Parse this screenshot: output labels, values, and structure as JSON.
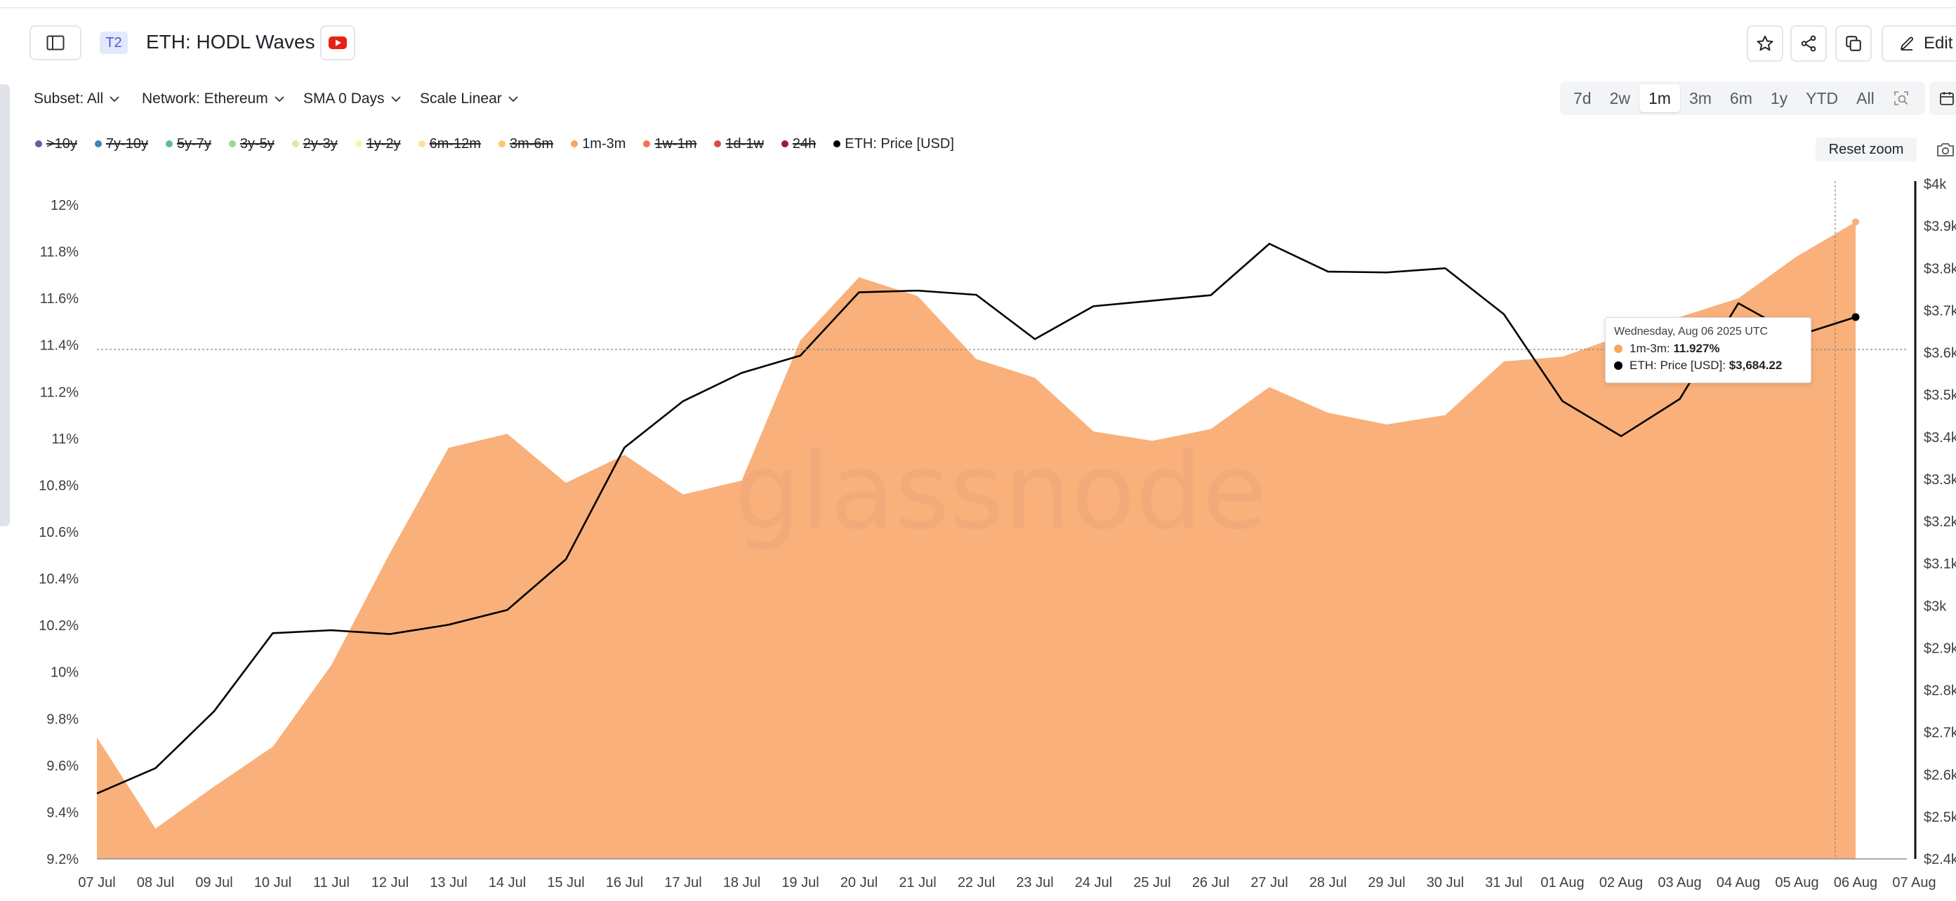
{
  "header": {
    "tier_badge": "T2",
    "title": "ETH: HODL Waves",
    "edit_label": "Edit"
  },
  "controls": {
    "subset": "Subset: All",
    "network": "Network: Ethereum",
    "sma": "SMA 0 Days",
    "scale": "Scale Linear"
  },
  "ranges": [
    {
      "label": "7d",
      "active": false
    },
    {
      "label": "2w",
      "active": false
    },
    {
      "label": "1m",
      "active": true
    },
    {
      "label": "3m",
      "active": false
    },
    {
      "label": "6m",
      "active": false
    },
    {
      "label": "1y",
      "active": false
    },
    {
      "label": "YTD",
      "active": false
    },
    {
      "label": "All",
      "active": false
    }
  ],
  "reset_zoom": "Reset zoom",
  "legend": [
    {
      "label": ">10y",
      "color": "#6a5aa8",
      "visible": false
    },
    {
      "label": "7y-10y",
      "color": "#3f84b8",
      "visible": false
    },
    {
      "label": "5y-7y",
      "color": "#5bb8a8",
      "visible": false
    },
    {
      "label": "3y-5y",
      "color": "#a3d39c",
      "visible": false
    },
    {
      "label": "2y-3y",
      "color": "#d8ec9a",
      "visible": false
    },
    {
      "label": "1y-2y",
      "color": "#fbf3a6",
      "visible": false
    },
    {
      "label": "6m-12m",
      "color": "#fde39a",
      "visible": false
    },
    {
      "label": "3m-6m",
      "color": "#fdc76b",
      "visible": false
    },
    {
      "label": "1m-3m",
      "color": "#f9a65a",
      "visible": true
    },
    {
      "label": "1w-1m",
      "color": "#f0764b",
      "visible": false
    },
    {
      "label": "1d-1w",
      "color": "#d94a4f",
      "visible": false
    },
    {
      "label": "24h",
      "color": "#a3104b",
      "visible": false
    },
    {
      "label": "ETH: Price [USD]",
      "color": "#000000",
      "visible": true
    }
  ],
  "watermark": "glassnode",
  "tooltip": {
    "date": "Wednesday, Aug 06 2025 UTC",
    "series1_name": "1m-3m",
    "series1_value": "11.927%",
    "series2_name": "ETH: Price [USD]",
    "series2_value": "$3,684.22"
  },
  "chart_data": {
    "type": "area",
    "x": [
      "07 Jul",
      "08 Jul",
      "09 Jul",
      "10 Jul",
      "11 Jul",
      "12 Jul",
      "13 Jul",
      "14 Jul",
      "15 Jul",
      "16 Jul",
      "17 Jul",
      "18 Jul",
      "19 Jul",
      "20 Jul",
      "21 Jul",
      "22 Jul",
      "23 Jul",
      "24 Jul",
      "25 Jul",
      "26 Jul",
      "27 Jul",
      "28 Jul",
      "29 Jul",
      "30 Jul",
      "31 Jul",
      "01 Aug",
      "02 Aug",
      "03 Aug",
      "04 Aug",
      "05 Aug",
      "06 Aug"
    ],
    "x_tick_labels": [
      "07 Jul",
      "08 Jul",
      "09 Jul",
      "10 Jul",
      "11 Jul",
      "12 Jul",
      "13 Jul",
      "14 Jul",
      "15 Jul",
      "16 Jul",
      "17 Jul",
      "18 Jul",
      "19 Jul",
      "20 Jul",
      "21 Jul",
      "22 Jul",
      "23 Jul",
      "24 Jul",
      "25 Jul",
      "26 Jul",
      "27 Jul",
      "28 Jul",
      "29 Jul",
      "30 Jul",
      "31 Jul",
      "01 Aug",
      "02 Aug",
      "03 Aug",
      "04 Aug",
      "05 Aug",
      "06 Aug",
      "07 Aug"
    ],
    "series": [
      {
        "name": "1m-3m",
        "axis": "left",
        "kind": "area",
        "color": "#f9b07a",
        "values": [
          9.72,
          9.33,
          9.51,
          9.68,
          10.03,
          10.51,
          10.96,
          11.02,
          10.81,
          10.93,
          10.76,
          10.82,
          11.42,
          11.69,
          11.61,
          11.34,
          11.26,
          11.03,
          10.99,
          11.04,
          11.22,
          11.11,
          11.06,
          11.1,
          11.33,
          11.35,
          11.44,
          11.52,
          11.6,
          11.78,
          11.927
        ]
      },
      {
        "name": "ETH: Price [USD]",
        "axis": "right",
        "kind": "line",
        "color": "#000000",
        "values": [
          2555,
          2615,
          2750,
          2935,
          2942,
          2933,
          2955,
          2990,
          3110,
          3375,
          3485,
          3552,
          3593,
          3743,
          3747,
          3737,
          3632,
          3710,
          3723,
          3736,
          3858,
          3792,
          3790,
          3800,
          3691,
          3485,
          3402,
          3490,
          3717,
          3640,
          3684.22
        ]
      }
    ],
    "y_left": {
      "min": 9.2,
      "max": 12.0,
      "ticks": [
        "9.2%",
        "9.4%",
        "9.6%",
        "9.8%",
        "10%",
        "10.2%",
        "10.4%",
        "10.6%",
        "10.8%",
        "11%",
        "11.2%",
        "11.4%",
        "11.6%",
        "11.8%",
        "12%"
      ]
    },
    "y_right": {
      "min": 2400,
      "max": 4000,
      "ticks": [
        "$2.4k",
        "$2.5k",
        "$2.6k",
        "$2.7k",
        "$2.8k",
        "$2.9k",
        "$3k",
        "$3.1k",
        "$3.2k",
        "$3.3k",
        "$3.4k",
        "$3.5k",
        "$3.6k",
        "$3.7k",
        "$3.8k",
        "$3.9k",
        "$4k"
      ]
    },
    "hover_index": 30
  }
}
